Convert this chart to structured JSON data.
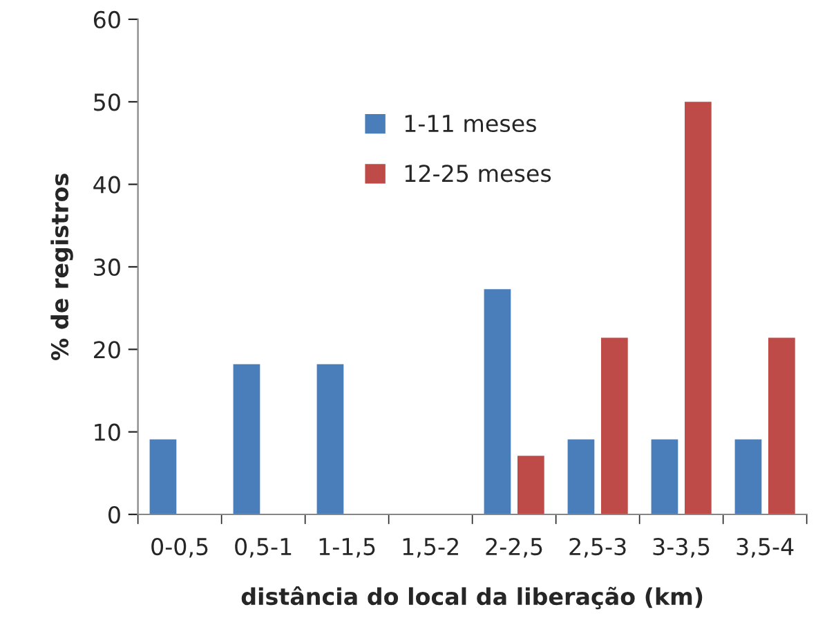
{
  "chart_data": {
    "type": "bar",
    "xlabel": "distância do local da liberação (km)",
    "ylabel": "% de registros",
    "categories": [
      "0-0,5",
      "0,5-1",
      "1-1,5",
      "1,5-2",
      "2-2,5",
      "2,5-3",
      "3-3,5",
      "3,5-4"
    ],
    "series": [
      {
        "name": "1-11 meses",
        "color": "#4a7ebb",
        "values": [
          9.1,
          18.2,
          18.2,
          null,
          27.3,
          9.1,
          9.1,
          9.1
        ]
      },
      {
        "name": "12-25 meses",
        "color": "#be4b48",
        "values": [
          null,
          null,
          null,
          null,
          7.1,
          21.4,
          50,
          21.4
        ]
      }
    ],
    "ylim": [
      0,
      60
    ],
    "yticks": [
      0,
      10,
      20,
      30,
      40,
      50,
      60
    ],
    "grid": false,
    "legend": "top"
  }
}
